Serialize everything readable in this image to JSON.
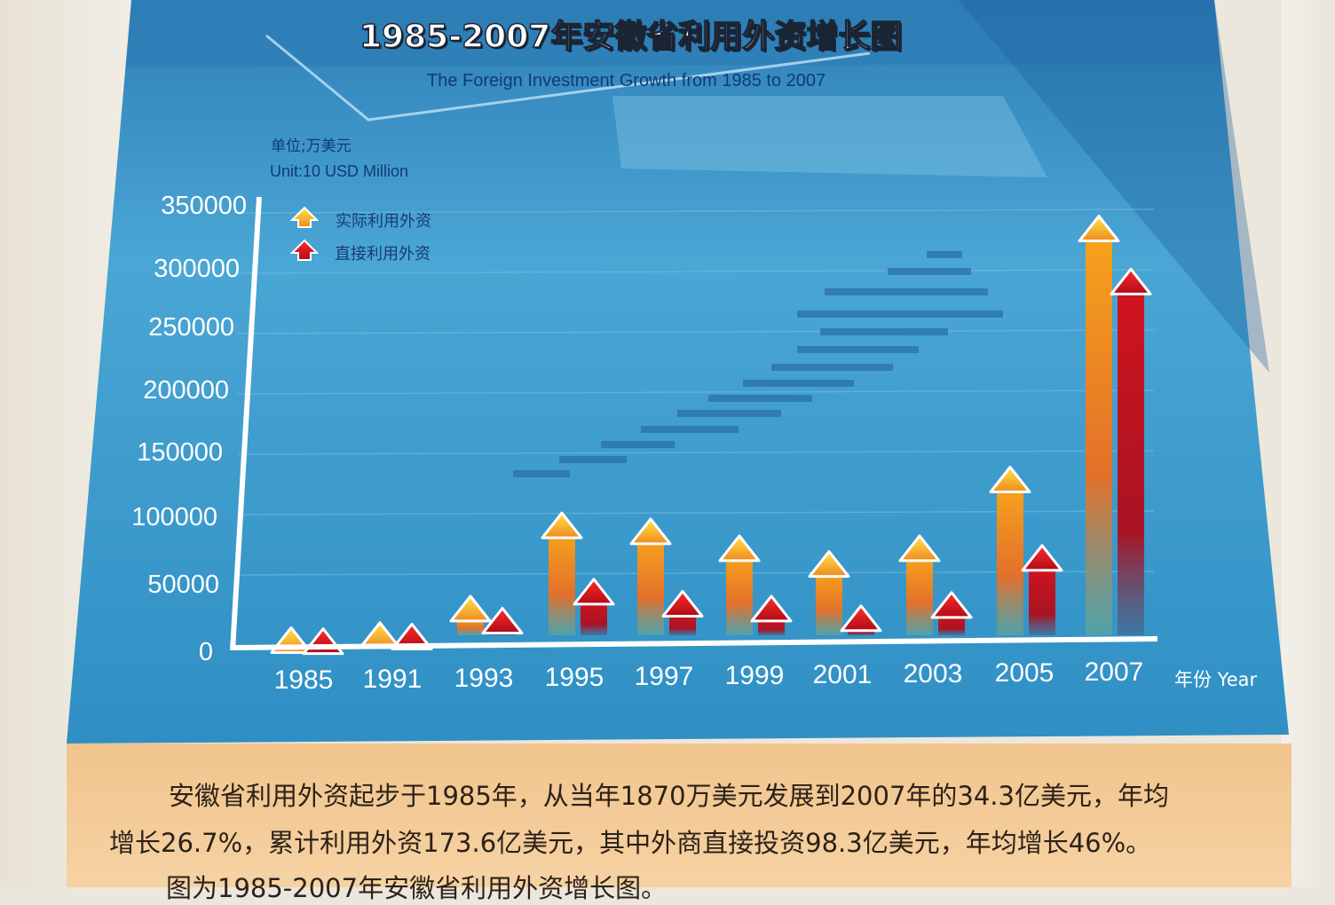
{
  "poster": {
    "title": "1985-2007年安徽省利用外资增长图",
    "subtitle": "The Foreign Investment Growth from 1985 to 2007",
    "unit_cn": "单位;万美元",
    "unit_en": "Unit:10 USD Million",
    "x_unit": "年份  Year",
    "colors": {
      "background": "#2f8ec2",
      "actual": "#f2a020",
      "direct": "#c8141e",
      "axis": "#ffffff"
    }
  },
  "chart_data": {
    "type": "bar",
    "title": "1985-2007年安徽省利用外资增长图",
    "subtitle": "The Foreign Investment Growth from 1985 to 2007",
    "ylabel": "单位;万美元 Unit:10 USD Million",
    "xlabel": "年份  Year",
    "categories": [
      "1985",
      "1991",
      "1993",
      "1995",
      "1997",
      "1999",
      "2001",
      "2003",
      "2005",
      "2007"
    ],
    "series": [
      {
        "name": "实际利用外资",
        "values": [
          1870,
          6000,
          28000,
          97000,
          92000,
          78000,
          65000,
          78000,
          135000,
          343000
        ]
      },
      {
        "name": "直接利用外资",
        "values": [
          1000,
          4800,
          18000,
          42000,
          32000,
          28000,
          20000,
          31000,
          70000,
          299000
        ]
      }
    ],
    "yticks": [
      "350000",
      "300000",
      "250000",
      "200000",
      "150000",
      "100000",
      "50000",
      "0"
    ],
    "ylim": [
      0,
      350000
    ],
    "grid": true,
    "legend": "top-left"
  },
  "caption": {
    "line1": "安徽省利用外资起步于1985年，从当年1870万美元发展到2007年的34.3亿美元，年均",
    "line2": "增长26.7%，累计利用外资173.6亿美元，其中外商直接投资98.3亿美元，年均增长46%。",
    "line3": "图为1985-2007年安徽省利用外资增长图。"
  }
}
